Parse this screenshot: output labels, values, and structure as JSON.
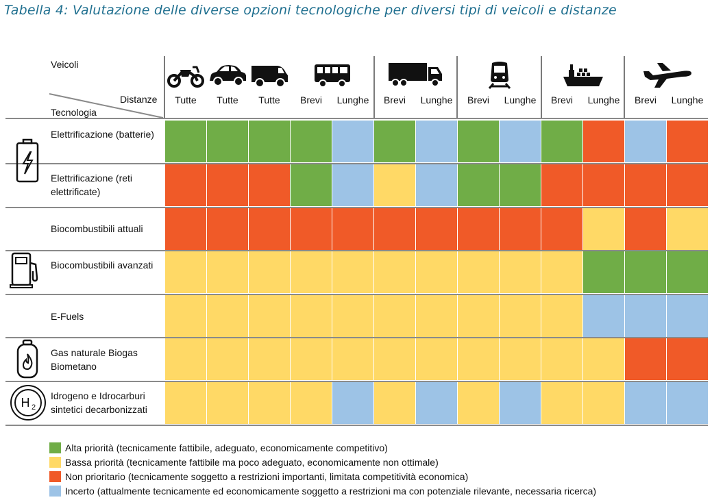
{
  "caption": "Tabella 4:  Valutazione delle diverse opzioni tecnologiche per diversi tipi di veicoli e distanze",
  "header": {
    "veicoli": "Veicoli",
    "distanze": "Distanze",
    "tecnologia": "Tecnologia"
  },
  "vehicles": [
    {
      "icon": "motorcycle-icon"
    },
    {
      "icon": "car-icon"
    },
    {
      "icon": "van-icon"
    },
    {
      "icon": "bus-icon"
    },
    {
      "icon": "truck-icon"
    },
    {
      "icon": "train-icon"
    },
    {
      "icon": "ship-icon"
    },
    {
      "icon": "airplane-icon"
    }
  ],
  "distances": [
    "Tutte",
    "Tutte",
    "Tutte",
    "Brevi",
    "Lunghe",
    "Brevi",
    "Lunghe",
    "Brevi",
    "Lunghe",
    "Brevi",
    "Lunghe",
    "Brevi",
    "Lunghe"
  ],
  "colors": {
    "G": "#70ad47",
    "Y": "#ffd966",
    "R": "#f05a28",
    "B": "#9dc3e6"
  },
  "rows": [
    {
      "label": "Elettrificazione (batterie)",
      "cells": [
        "G",
        "G",
        "G",
        "G",
        "B",
        "G",
        "B",
        "G",
        "B",
        "G",
        "R",
        "B",
        "R"
      ]
    },
    {
      "label": "Elettrificazione (reti elettrificate)",
      "cells": [
        "R",
        "R",
        "R",
        "G",
        "B",
        "Y",
        "B",
        "G",
        "G",
        "R",
        "R",
        "R",
        "R"
      ]
    },
    {
      "label": "Biocombustibili attuali",
      "cells": [
        "R",
        "R",
        "R",
        "R",
        "R",
        "R",
        "R",
        "R",
        "R",
        "R",
        "Y",
        "R",
        "Y"
      ]
    },
    {
      "label": "Biocombustibili avanzati",
      "cells": [
        "Y",
        "Y",
        "Y",
        "Y",
        "Y",
        "Y",
        "Y",
        "Y",
        "Y",
        "Y",
        "G",
        "G",
        "G"
      ]
    },
    {
      "label": "E-Fuels",
      "cells": [
        "Y",
        "Y",
        "Y",
        "Y",
        "Y",
        "Y",
        "Y",
        "Y",
        "Y",
        "Y",
        "B",
        "B",
        "B"
      ]
    },
    {
      "label": "Gas naturale Biogas Biometano",
      "cells": [
        "Y",
        "Y",
        "Y",
        "Y",
        "Y",
        "Y",
        "Y",
        "Y",
        "Y",
        "Y",
        "Y",
        "R",
        "R"
      ]
    },
    {
      "label": "Idrogeno e Idrocarburi sintetici decarbonizzati",
      "cells": [
        "Y",
        "Y",
        "Y",
        "Y",
        "B",
        "Y",
        "B",
        "Y",
        "B",
        "Y",
        "Y",
        "B",
        "B"
      ]
    }
  ],
  "tech_icons": [
    {
      "icon": "battery-icon"
    },
    {
      "icon": "fuel-pump-icon"
    },
    {
      "icon": "gas-cylinder-icon"
    },
    {
      "icon": "hydrogen-icon",
      "text": "H"
    }
  ],
  "legend": [
    {
      "color": "G",
      "text": "Alta priorità (tecnicamente fattibile, adeguato, economicamente competitivo)"
    },
    {
      "color": "Y",
      "text": "Bassa priorità (tecnicamente fattibile ma poco adeguato, economicamente non ottimale)"
    },
    {
      "color": "R",
      "text": "Non prioritario (tecnicamente soggetto a restrizioni importanti, limitata competitività economica)"
    },
    {
      "color": "B",
      "text": "Incerto (attualmente tecnicamente ed economicamente soggetto a restrizioni ma con potenziale rilevante, necessaria ricerca)"
    }
  ]
}
